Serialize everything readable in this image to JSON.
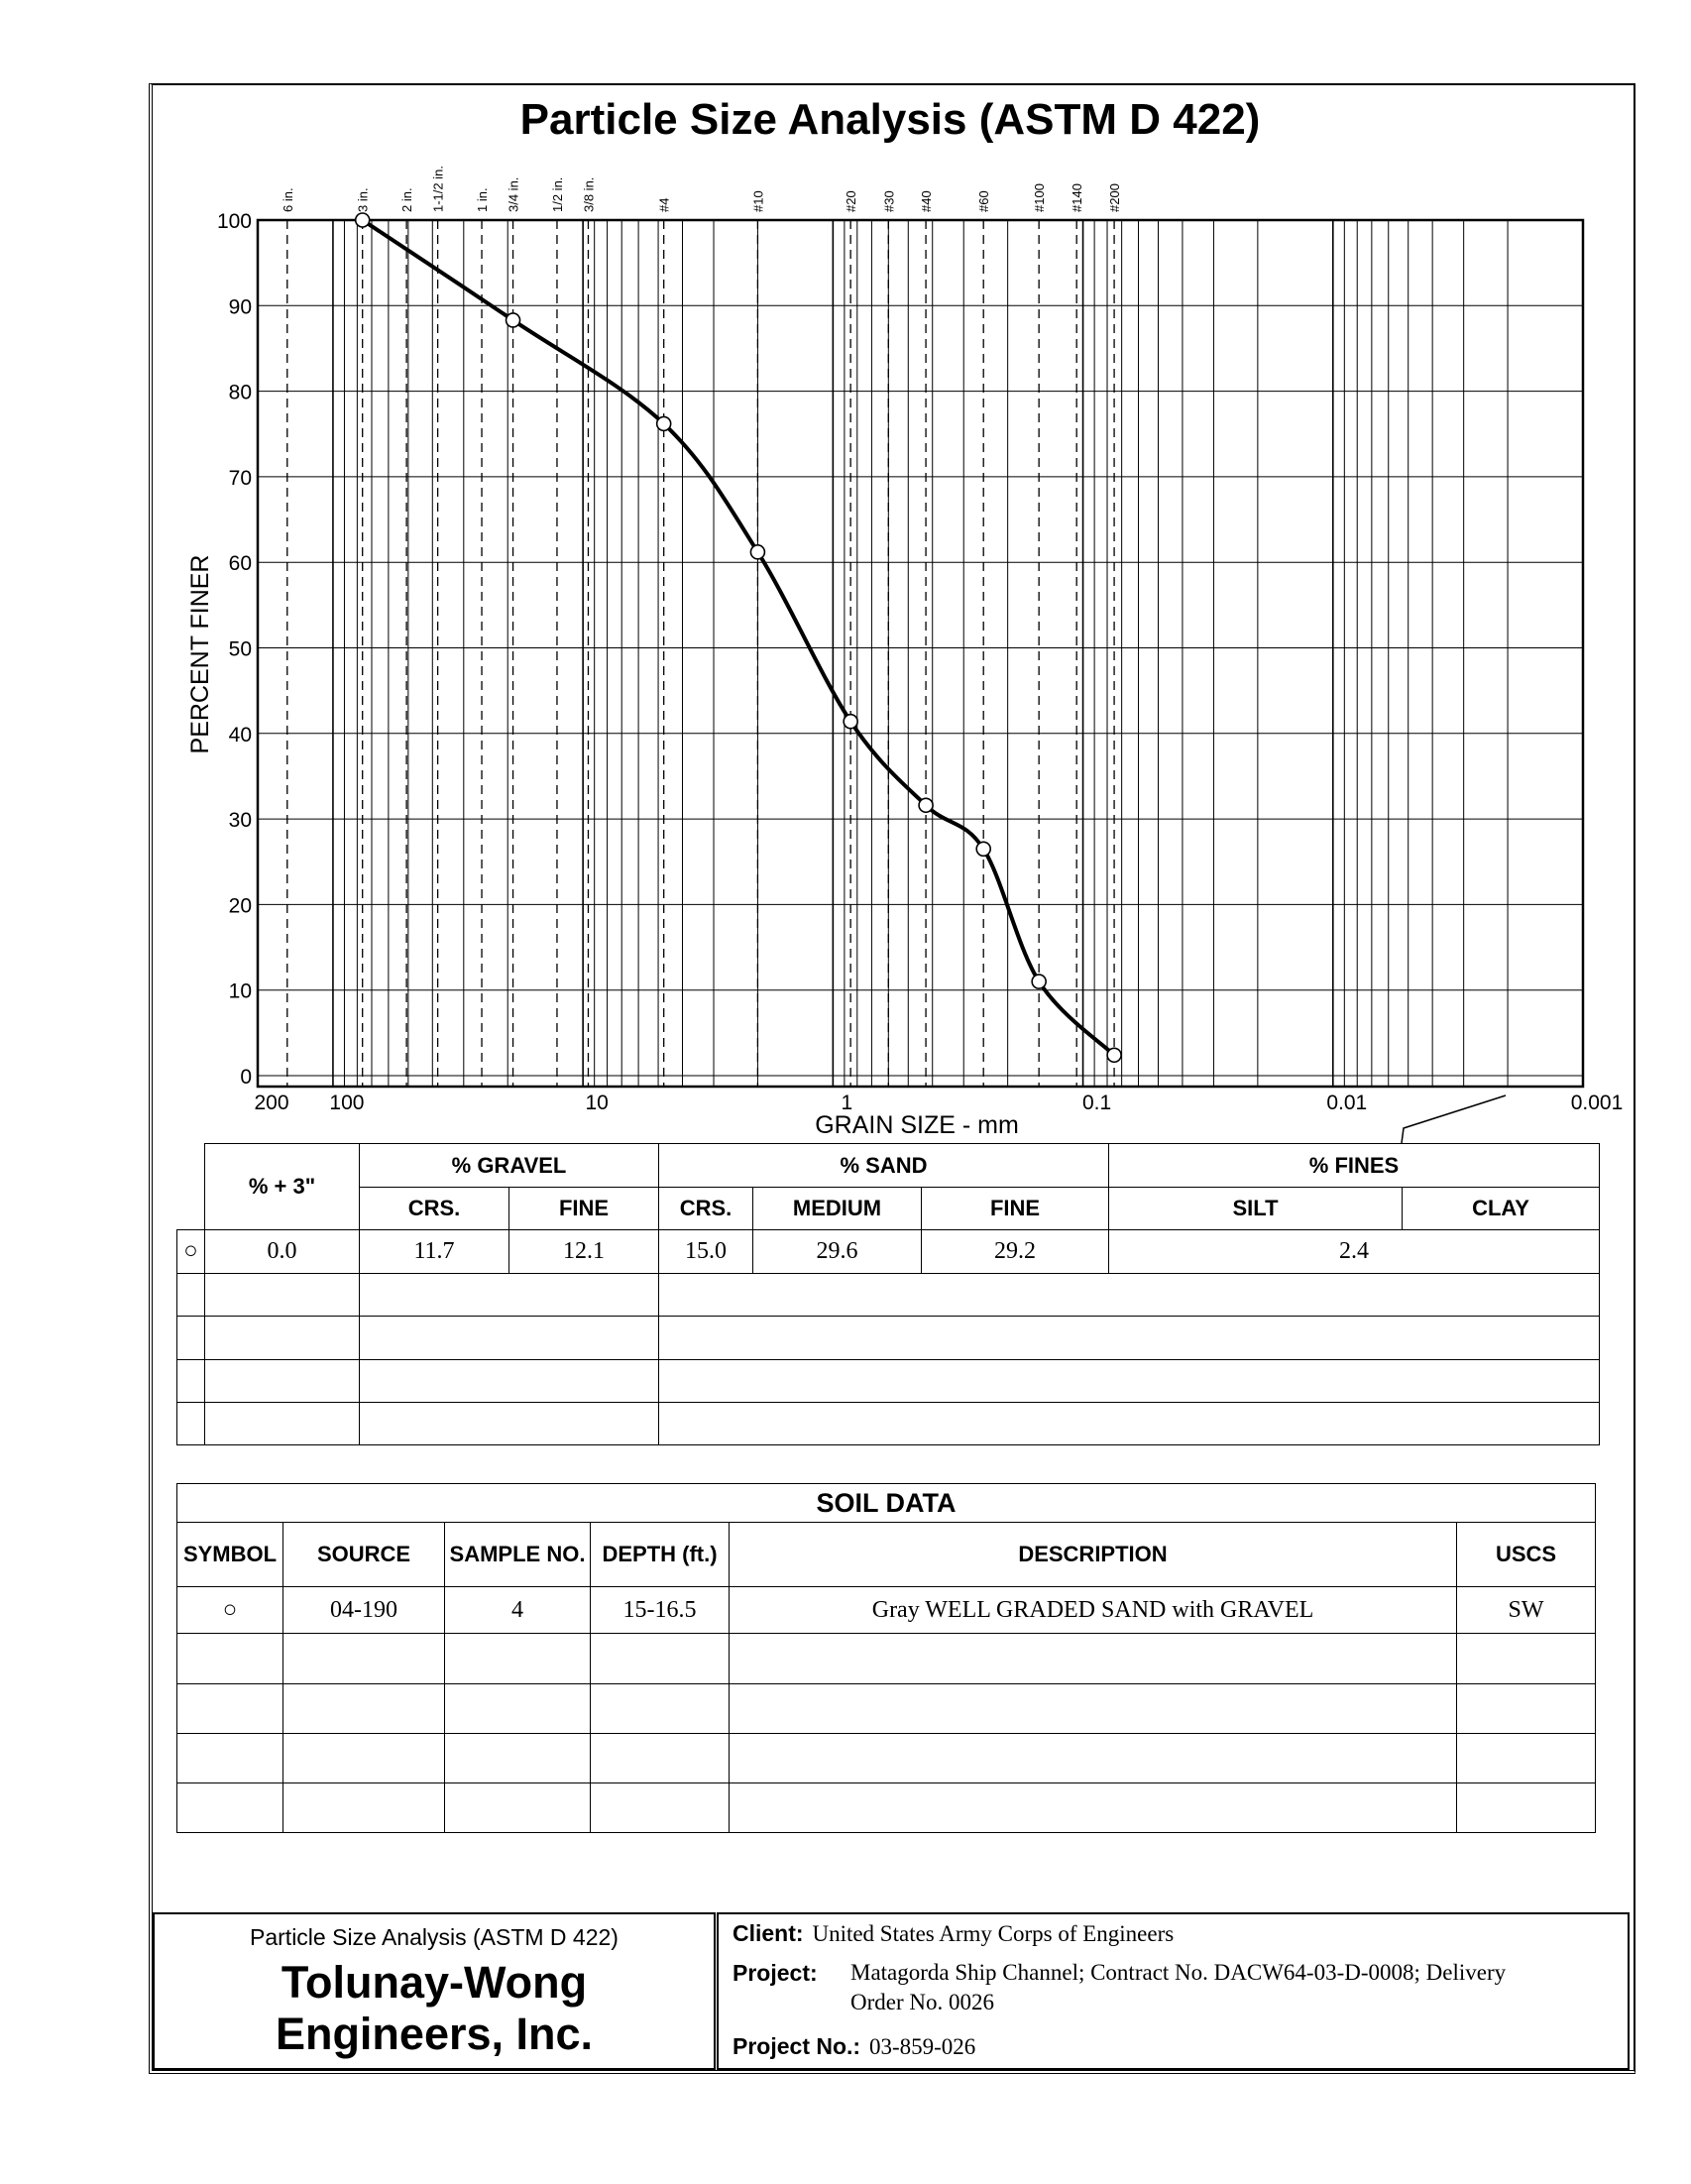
{
  "title": "Particle Size Analysis (ASTM D 422)",
  "chart_data": {
    "type": "line",
    "title": "Particle Size Analysis (ASTM D 422)",
    "xlabel": "GRAIN SIZE - mm",
    "ylabel": "PERCENT FINER",
    "xscale": "log",
    "xlim": [
      200,
      0.001
    ],
    "ylim": [
      0,
      100
    ],
    "x_ticks": [
      {
        "v": 200,
        "label": "200"
      },
      {
        "v": 100,
        "label": "100"
      },
      {
        "v": 10,
        "label": "10"
      },
      {
        "v": 1,
        "label": "1"
      },
      {
        "v": 0.1,
        "label": "0.1"
      },
      {
        "v": 0.01,
        "label": "0.01"
      },
      {
        "v": 0.001,
        "label": "0.001"
      }
    ],
    "y_ticks": [
      0,
      10,
      20,
      30,
      40,
      50,
      60,
      70,
      80,
      90,
      100
    ],
    "sieves": [
      {
        "label": "6 in.",
        "mm": 152.4
      },
      {
        "label": "3 in.",
        "mm": 76.2
      },
      {
        "label": "2 in.",
        "mm": 50.8
      },
      {
        "label": "1-1/2 in.",
        "mm": 38.1
      },
      {
        "label": "1 in.",
        "mm": 25.4
      },
      {
        "label": "3/4 in.",
        "mm": 19.05
      },
      {
        "label": "1/2 in.",
        "mm": 12.7
      },
      {
        "label": "3/8 in.",
        "mm": 9.525
      },
      {
        "label": "#4",
        "mm": 4.75
      },
      {
        "label": "#10",
        "mm": 2.0
      },
      {
        "label": "#20",
        "mm": 0.85
      },
      {
        "label": "#30",
        "mm": 0.6
      },
      {
        "label": "#40",
        "mm": 0.425
      },
      {
        "label": "#60",
        "mm": 0.25
      },
      {
        "label": "#100",
        "mm": 0.15
      },
      {
        "label": "#140",
        "mm": 0.106
      },
      {
        "label": "#200",
        "mm": 0.075
      }
    ],
    "series": [
      {
        "name": "04-190 sample 4",
        "x": [
          76.2,
          19.05,
          4.75,
          2.0,
          0.85,
          0.425,
          0.25,
          0.15,
          0.075
        ],
        "y": [
          100,
          88.3,
          76.2,
          61.2,
          41.4,
          31.6,
          26.5,
          11.0,
          2.4
        ]
      }
    ]
  },
  "grad_table": {
    "plus3": "% + 3\"",
    "gravel": "% GRAVEL",
    "sand": "% SAND",
    "fines": "% FINES",
    "sub": [
      "CRS.",
      "FINE",
      "CRS.",
      "MEDIUM",
      "FINE",
      "SILT",
      "CLAY"
    ],
    "row": {
      "symbol": "○",
      "plus3": "0.0",
      "gravel_crs": "11.7",
      "gravel_fine": "12.1",
      "sand_crs": "15.0",
      "sand_med": "29.6",
      "sand_fine": "29.2",
      "fines": "2.4"
    }
  },
  "soil": {
    "title": "SOIL DATA",
    "headers": [
      "SYMBOL",
      "SOURCE",
      "SAMPLE NO.",
      "DEPTH (ft.)",
      "DESCRIPTION",
      "USCS"
    ],
    "row": [
      "○",
      "04-190",
      "4",
      "15-16.5",
      "Gray WELL GRADED SAND with GRAVEL",
      "SW"
    ]
  },
  "footer": {
    "report": "Particle Size Analysis (ASTM D 422)",
    "company1": "Tolunay-Wong",
    "company2": "Engineers, Inc.",
    "client_label": "Client:",
    "client": "United States Army Corps of Engineers",
    "project_label": "Project:",
    "project1": "Matagorda Ship Channel; Contract No. DACW64-03-D-0008;  Delivery",
    "project2": "Order No. 0026",
    "projno_label": "Project No.:",
    "projno": "03-859-026"
  }
}
